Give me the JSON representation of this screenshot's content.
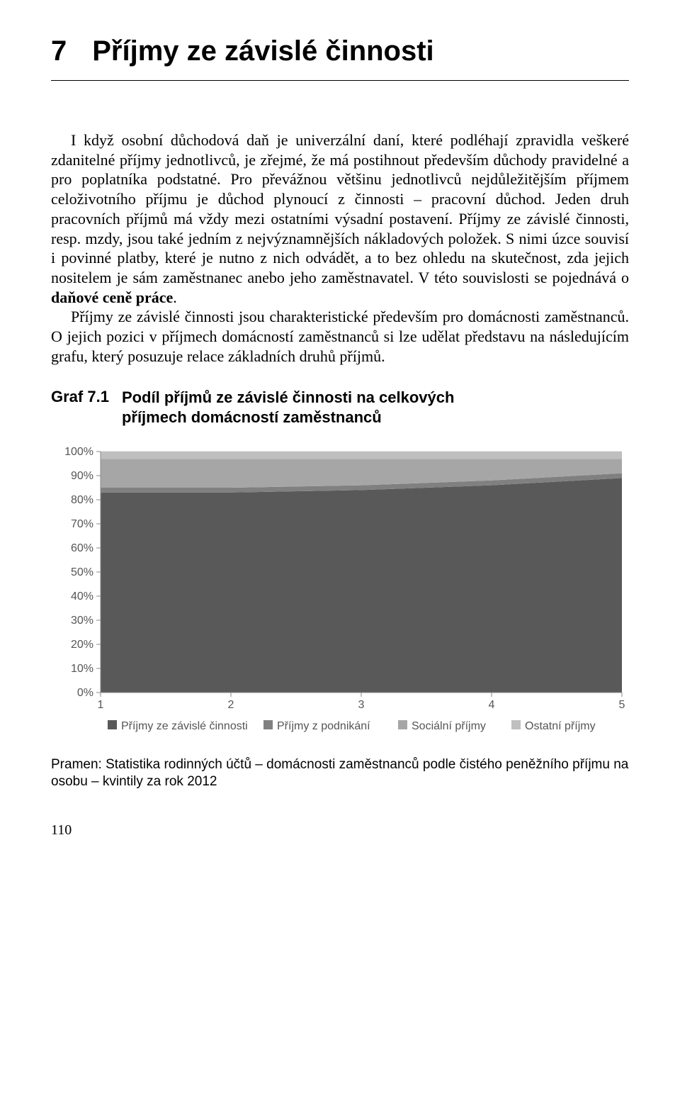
{
  "chapter": {
    "number": "7",
    "title": "Příjmy ze závislé činnosti"
  },
  "paragraphs": {
    "p1": "I když osobní důchodová daň je univerzální daní, které podléhají zpravidla veškeré zdanitelné příjmy jednotlivců, je zřejmé, že má postihnout především důchody pravidelné a pro poplatníka podstatné. Pro převážnou většinu jednotlivců nejdůležitějším příjmem celoživotního příjmu je důchod plynoucí z činnosti – pracovní důchod. Jeden druh pracovních příjmů má vždy mezi ostatními výsadní postavení. Příjmy ze závislé činnosti, resp. mzdy, jsou také jedním z nejvýznamnějších nákladových položek. S nimi úzce souvisí i povinné platby, které je nutno z nich odvádět, a to bez ohledu na skutečnost, zda jejich nositelem je sám zaměstnanec anebo jeho zaměstnavatel. V této souvislosti se pojednává o ",
    "p1_bold": "daňové ceně práce",
    "p1_tail": ".",
    "p2": "Příjmy ze závislé činnosti jsou charakteristické především pro domácnosti zaměstnanců. O jejich pozici v příjmech domácností zaměstnanců si lze udělat představu na následujícím grafu, který posuzuje relace základních druhů příjmů."
  },
  "graf": {
    "label": "Graf 7.1",
    "title_line1": "Podíl příjmů ze závislé činnosti na celkových",
    "title_line2": "příjmech domácností zaměstnanců"
  },
  "chart": {
    "type": "stacked-area",
    "x_categories": [
      "1",
      "2",
      "3",
      "4",
      "5"
    ],
    "y_ticks": [
      "0%",
      "10%",
      "20%",
      "30%",
      "40%",
      "50%",
      "60%",
      "70%",
      "80%",
      "90%",
      "100%"
    ],
    "ylim": [
      0,
      100
    ],
    "series": [
      {
        "name": "Příjmy ze závislé činnosti",
        "color": "#595959",
        "values": [
          83,
          83,
          84,
          86,
          89
        ]
      },
      {
        "name": "Příjmy z podnikání",
        "color": "#808080",
        "values": [
          2,
          2,
          2,
          2,
          2
        ]
      },
      {
        "name": "Sociální příjmy",
        "color": "#a6a6a6",
        "values": [
          12,
          12,
          11,
          9,
          6
        ]
      },
      {
        "name": "Ostatní příjmy",
        "color": "#bfbfbf",
        "values": [
          3,
          3,
          3,
          3,
          3
        ]
      }
    ],
    "plot_bg": "#ffffff",
    "axis_color": "#888888",
    "grid_color": "#d9d9d9",
    "tick_color": "#888888",
    "label_fontsize": 16,
    "legend_box_size": 13
  },
  "source": {
    "label": "Pramen:",
    "text": "Statistika rodinných účtů – domácnosti zaměstnanců podle čistého peněžního příjmu na osobu – kvintily za rok 2012"
  },
  "page_number": "110"
}
